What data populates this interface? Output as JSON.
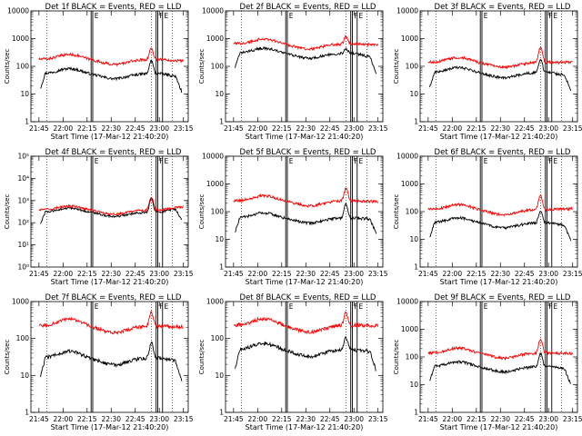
{
  "chart_data": [
    {
      "type": "line",
      "title": "Det 1f BLACK = Events, RED = LLD",
      "xlabel": "Start Time (17-Mar-12 21:40:20)",
      "ylabel": "Counts/sec",
      "yscale": "log",
      "ylim": [
        1,
        10000
      ],
      "yticks": [
        "1",
        "10",
        "100",
        "1000",
        "10000"
      ],
      "xticks": [
        "21:45",
        "22:00",
        "22:15",
        "22:30",
        "22:45",
        "23:00",
        "23:15"
      ],
      "series": [
        {
          "name": "Events",
          "color": "#000000",
          "base": 55,
          "peak": 130,
          "end": 35
        },
        {
          "name": "LLD",
          "color": "#ff0000",
          "base": 180,
          "peak": 380,
          "end": 150
        }
      ],
      "annotations": [
        "E",
        "F",
        "E"
      ]
    },
    {
      "type": "line",
      "title": "Det 2f BLACK = Events, RED = LLD",
      "xlabel": "Start Time (17-Mar-12 21:40:20)",
      "ylabel": "Counts/sec",
      "yscale": "log",
      "ylim": [
        1,
        10000
      ],
      "yticks": [
        "1",
        "10",
        "100",
        "1000",
        "10000"
      ],
      "xticks": [
        "21:45",
        "22:00",
        "22:15",
        "22:30",
        "22:45",
        "23:00",
        "23:15"
      ],
      "series": [
        {
          "name": "Events",
          "color": "#000000",
          "base": 300,
          "peak": 400,
          "end": 150
        },
        {
          "name": "LLD",
          "color": "#ff0000",
          "base": 650,
          "peak": 1050,
          "end": 600
        }
      ],
      "annotations": [
        "E",
        "F",
        "E"
      ]
    },
    {
      "type": "line",
      "title": "Det 3f BLACK = Events, RED = LLD",
      "xlabel": "Start Time (17-Mar-12 21:40:20)",
      "ylabel": "Counts/sec",
      "yscale": "log",
      "ylim": [
        1,
        10000
      ],
      "yticks": [
        "1",
        "10",
        "100",
        "1000",
        "10000"
      ],
      "xticks": [
        "21:45",
        "22:00",
        "22:15",
        "22:30",
        "22:45",
        "23:00",
        "23:15"
      ],
      "series": [
        {
          "name": "Events",
          "color": "#000000",
          "base": 60,
          "peak": 150,
          "end": 40
        },
        {
          "name": "LLD",
          "color": "#ff0000",
          "base": 140,
          "peak": 380,
          "end": 140
        }
      ],
      "annotations": [
        "E",
        "F",
        "E"
      ]
    },
    {
      "type": "line",
      "title": "Det 4f BLACK = Events, RED = LLD",
      "xlabel": "Start Time (17-Mar-12 21:40:20)",
      "ylabel": "Counts/sec",
      "yscale": "log",
      "ylim": [
        1,
        100000
      ],
      "yticks": [
        "10⁰",
        "10¹",
        "10²",
        "10³",
        "10⁴",
        "10⁵"
      ],
      "xticks": [
        "21:45",
        "22:00",
        "22:15",
        "22:30",
        "22:45",
        "23:00",
        "23:15"
      ],
      "series": [
        {
          "name": "Events",
          "color": "#000000",
          "base": 300,
          "peak": 900,
          "end": 500
        },
        {
          "name": "LLD",
          "color": "#ff0000",
          "base": 380,
          "peak": 1100,
          "end": 550
        }
      ],
      "annotations": [
        "E",
        "F",
        "E"
      ]
    },
    {
      "type": "line",
      "title": "Det 5f BLACK = Events, RED = LLD",
      "xlabel": "Start Time (17-Mar-12 21:40:20)",
      "ylabel": "Counts/sec",
      "yscale": "log",
      "ylim": [
        1,
        10000
      ],
      "yticks": [
        "1",
        "10",
        "100",
        "1000",
        "10000"
      ],
      "xticks": [
        "21:45",
        "22:00",
        "22:15",
        "22:30",
        "22:45",
        "23:00",
        "23:15"
      ],
      "series": [
        {
          "name": "Events",
          "color": "#000000",
          "base": 60,
          "peak": 150,
          "end": 50
        },
        {
          "name": "LLD",
          "color": "#ff0000",
          "base": 250,
          "peak": 550,
          "end": 220
        }
      ],
      "annotations": [
        "E",
        "F",
        "E"
      ]
    },
    {
      "type": "line",
      "title": "Det 6f BLACK = Events, RED = LLD",
      "xlabel": "Start Time (17-Mar-12 21:40:20)",
      "ylabel": "Counts/sec",
      "yscale": "log",
      "ylim": [
        1,
        10000
      ],
      "yticks": [
        "1",
        "10",
        "100",
        "1000",
        "10000"
      ],
      "xticks": [
        "21:45",
        "22:00",
        "22:15",
        "22:30",
        "22:45",
        "23:00",
        "23:15"
      ],
      "series": [
        {
          "name": "Events",
          "color": "#000000",
          "base": 40,
          "peak": 90,
          "end": 25
        },
        {
          "name": "LLD",
          "color": "#ff0000",
          "base": 120,
          "peak": 320,
          "end": 130
        }
      ],
      "annotations": [
        "E",
        "F",
        "E"
      ]
    },
    {
      "type": "line",
      "title": "Det 7f BLACK = Events, RED = LLD",
      "xlabel": "Start Time (17-Mar-12 21:40:20)",
      "ylabel": "Counts/sec",
      "yscale": "log",
      "ylim": [
        1,
        1000
      ],
      "yticks": [
        "1",
        "10",
        "100",
        "1000"
      ],
      "xticks": [
        "21:45",
        "22:00",
        "22:15",
        "22:30",
        "22:45",
        "23:00",
        "23:15"
      ],
      "series": [
        {
          "name": "Events",
          "color": "#000000",
          "base": 30,
          "peak": 65,
          "end": 20
        },
        {
          "name": "LLD",
          "color": "#ff0000",
          "base": 220,
          "peak": 450,
          "end": 200
        }
      ],
      "annotations": [
        "E",
        "F",
        "E"
      ]
    },
    {
      "type": "line",
      "title": "Det 8f BLACK = Events, RED = LLD",
      "xlabel": "Start Time (17-Mar-12 21:40:20)",
      "ylabel": "Counts/sec",
      "yscale": "log",
      "ylim": [
        1,
        1000
      ],
      "yticks": [
        "1",
        "10",
        "100",
        "1000"
      ],
      "xticks": [
        "21:45",
        "22:00",
        "22:15",
        "22:30",
        "22:45",
        "23:00",
        "23:15"
      ],
      "series": [
        {
          "name": "Events",
          "color": "#000000",
          "base": 50,
          "peak": 90,
          "end": 40
        },
        {
          "name": "LLD",
          "color": "#ff0000",
          "base": 230,
          "peak": 420,
          "end": 220
        }
      ],
      "annotations": [
        "E",
        "F",
        "E"
      ]
    },
    {
      "type": "line",
      "title": "Det 9f BLACK = Events, RED = LLD",
      "xlabel": "Start Time (17-Mar-12 21:40:20)",
      "ylabel": "Counts/sec",
      "yscale": "log",
      "ylim": [
        1,
        10000
      ],
      "yticks": [
        "1",
        "10",
        "100",
        "1000",
        "10000"
      ],
      "xticks": [
        "21:45",
        "22:00",
        "22:15",
        "22:30",
        "22:45",
        "23:00",
        "23:15"
      ],
      "series": [
        {
          "name": "Events",
          "color": "#000000",
          "base": 45,
          "peak": 110,
          "end": 30
        },
        {
          "name": "LLD",
          "color": "#ff0000",
          "base": 140,
          "peak": 350,
          "end": 130
        }
      ],
      "annotations": [
        "E",
        "F",
        "E"
      ]
    }
  ]
}
